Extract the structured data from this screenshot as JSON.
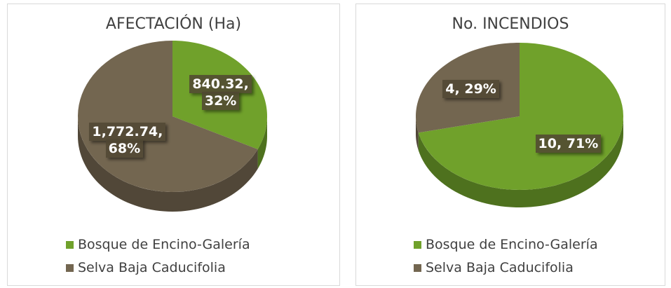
{
  "chart_data": [
    {
      "type": "pie",
      "title": "AFECTACIÓN (Ha)",
      "categories": [
        "Bosque de Encino-Galería",
        "Selva Baja Caducifolia"
      ],
      "values": [
        840.32,
        1772.74
      ],
      "value_labels": [
        "840.32, 32%",
        "1,772.74, 68%"
      ],
      "colors": [
        "#70a12b",
        "#736650"
      ]
    },
    {
      "type": "pie",
      "title": "No. INCENDIOS",
      "categories": [
        "Bosque de Encino-Galería",
        "Selva Baja Caducifolia"
      ],
      "values": [
        10,
        4
      ],
      "value_labels": [
        "10, 71%",
        "4, 29%"
      ],
      "colors": [
        "#70a12b",
        "#736650"
      ]
    }
  ]
}
